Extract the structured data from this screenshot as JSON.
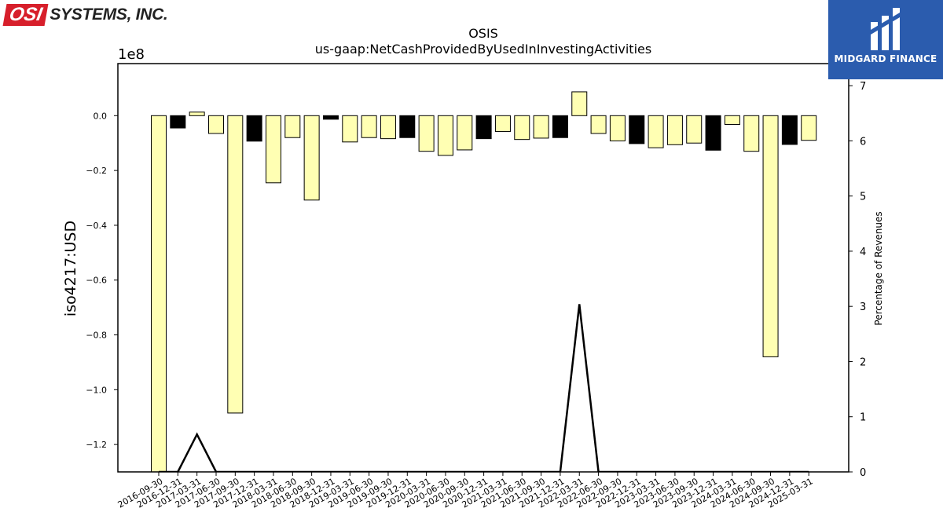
{
  "company_logo": {
    "badge_text": "OSI",
    "name_text": "SYSTEMS, INC."
  },
  "brand": {
    "name": "MIDGARD FINANCE"
  },
  "chart_data": {
    "type": "bar",
    "title": "OSIS",
    "subtitle": "us-gaap:NetCashProvidedByUsedInInvestingActivities",
    "ylabel": "iso4217:USD",
    "y2label": "Percentage of Revenues",
    "offset_text": "1e8",
    "ylim": [
      -130000000,
      19000000
    ],
    "y2lim": [
      0,
      7.4
    ],
    "yticks": [
      0,
      -20000000,
      -40000000,
      -60000000,
      -80000000,
      -100000000,
      -120000000
    ],
    "ytick_labels": [
      "0.0",
      "−0.2",
      "−0.4",
      "−0.6",
      "−0.8",
      "−1.0",
      "−1.2"
    ],
    "y2ticks": [
      0,
      1,
      2,
      3,
      4,
      5,
      6,
      7
    ],
    "grid": false,
    "bar_color_default": "#ffffb3",
    "bar_color_highlight": "#000000",
    "line_color": "#000000",
    "categories": [
      "2016-09-30",
      "2016-12-31",
      "2017-03-31",
      "2017-06-30",
      "2017-09-30",
      "2017-12-31",
      "2018-03-31",
      "2018-06-30",
      "2018-09-30",
      "2018-12-31",
      "2019-03-31",
      "2019-06-30",
      "2019-09-30",
      "2019-12-31",
      "2020-03-31",
      "2020-06-30",
      "2020-09-30",
      "2020-12-31",
      "2021-03-31",
      "2021-06-30",
      "2021-09-30",
      "2021-12-31",
      "2022-03-31",
      "2022-06-30",
      "2022-09-30",
      "2022-12-31",
      "2023-03-31",
      "2023-06-30",
      "2023-09-30",
      "2023-12-31",
      "2024-03-31",
      "2024-06-30",
      "2024-09-30",
      "2024-12-31",
      "2025-03-31"
    ],
    "values": [
      -131000000,
      -4500000,
      1300000,
      -6500000,
      -108500000,
      -9300000,
      -24500000,
      -8000000,
      -30800000,
      -1300000,
      -9600000,
      -8000000,
      -8400000,
      -8000000,
      -13000000,
      -14500000,
      -12500000,
      -8400000,
      -5800000,
      -8700000,
      -8200000,
      -8000000,
      8700000,
      -6500000,
      -9200000,
      -10200000,
      -11700000,
      -10600000,
      -10000000,
      -12600000,
      -3200000,
      -13000000,
      -88000000,
      -10500000,
      -9000000
    ],
    "highlight": [
      false,
      true,
      false,
      false,
      false,
      true,
      false,
      false,
      false,
      true,
      false,
      false,
      false,
      true,
      false,
      false,
      false,
      true,
      false,
      false,
      false,
      true,
      false,
      false,
      false,
      true,
      false,
      false,
      false,
      true,
      false,
      false,
      false,
      true,
      false
    ],
    "series": [
      {
        "values": [
          0,
          0,
          0.68,
          0,
          0,
          0,
          0,
          0,
          0,
          0,
          0,
          0,
          0,
          0,
          0,
          0,
          0,
          0,
          0,
          0,
          0,
          0,
          3.04,
          0,
          0,
          0,
          0,
          0,
          0,
          0,
          0,
          0,
          0,
          0,
          0
        ]
      }
    ]
  }
}
